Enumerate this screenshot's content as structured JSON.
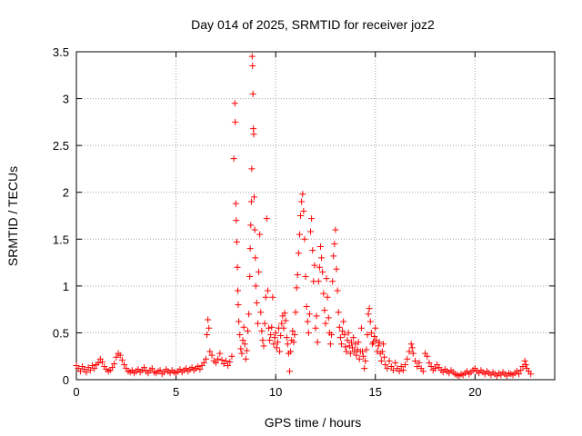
{
  "chart_data": {
    "type": "scatter",
    "title": "Day 014 of 2025, SRMTID for receiver joz2",
    "xlabel": "GPS time / hours",
    "ylabel": "SRMTID / TECUs",
    "xlim": [
      0,
      24
    ],
    "ylim": [
      0,
      3.5
    ],
    "x_ticks": [
      0,
      5,
      10,
      15,
      20
    ],
    "y_ticks": [
      0,
      0.5,
      1,
      1.5,
      2,
      2.5,
      3,
      3.5
    ],
    "x_tick_labels": [
      "0",
      "5",
      "10",
      "15",
      "20"
    ],
    "y_tick_labels": [
      "0",
      "0.5",
      "1",
      "1.5",
      "2",
      "2.5",
      "3",
      "3.5"
    ],
    "grid": true,
    "marker": "+",
    "marker_color": "#ff0000",
    "series": [
      {
        "name": "SRMTID",
        "points": [
          [
            0.0,
            0.15
          ],
          [
            0.1,
            0.12
          ],
          [
            0.2,
            0.09
          ],
          [
            0.3,
            0.14
          ],
          [
            0.4,
            0.11
          ],
          [
            0.5,
            0.08
          ],
          [
            0.6,
            0.13
          ],
          [
            0.7,
            0.1
          ],
          [
            0.8,
            0.15
          ],
          [
            0.9,
            0.12
          ],
          [
            1.0,
            0.16
          ],
          [
            1.1,
            0.18
          ],
          [
            1.2,
            0.22
          ],
          [
            1.3,
            0.19
          ],
          [
            1.4,
            0.14
          ],
          [
            1.5,
            0.11
          ],
          [
            1.6,
            0.09
          ],
          [
            1.7,
            0.1
          ],
          [
            1.8,
            0.13
          ],
          [
            1.9,
            0.17
          ],
          [
            2.0,
            0.24
          ],
          [
            2.1,
            0.28
          ],
          [
            2.2,
            0.26
          ],
          [
            2.3,
            0.21
          ],
          [
            2.4,
            0.16
          ],
          [
            2.5,
            0.12
          ],
          [
            2.6,
            0.09
          ],
          [
            2.7,
            0.08
          ],
          [
            2.8,
            0.1
          ],
          [
            2.9,
            0.07
          ],
          [
            3.0,
            0.09
          ],
          [
            3.1,
            0.11
          ],
          [
            3.2,
            0.08
          ],
          [
            3.3,
            0.1
          ],
          [
            3.4,
            0.13
          ],
          [
            3.5,
            0.09
          ],
          [
            3.6,
            0.07
          ],
          [
            3.7,
            0.1
          ],
          [
            3.8,
            0.12
          ],
          [
            3.9,
            0.08
          ],
          [
            4.0,
            0.07
          ],
          [
            4.1,
            0.09
          ],
          [
            4.2,
            0.1
          ],
          [
            4.3,
            0.06
          ],
          [
            4.4,
            0.08
          ],
          [
            4.5,
            0.11
          ],
          [
            4.6,
            0.09
          ],
          [
            4.7,
            0.07
          ],
          [
            4.8,
            0.1
          ],
          [
            4.9,
            0.08
          ],
          [
            5.0,
            0.07
          ],
          [
            5.1,
            0.09
          ],
          [
            5.2,
            0.11
          ],
          [
            5.3,
            0.08
          ],
          [
            5.4,
            0.1
          ],
          [
            5.5,
            0.12
          ],
          [
            5.6,
            0.09
          ],
          [
            5.7,
            0.11
          ],
          [
            5.8,
            0.13
          ],
          [
            5.9,
            0.1
          ],
          [
            6.0,
            0.12
          ],
          [
            6.1,
            0.14
          ],
          [
            6.2,
            0.11
          ],
          [
            6.3,
            0.15
          ],
          [
            6.4,
            0.18
          ],
          [
            6.5,
            0.22
          ],
          [
            6.55,
            0.48
          ],
          [
            6.6,
            0.64
          ],
          [
            6.65,
            0.55
          ],
          [
            6.7,
            0.3
          ],
          [
            6.8,
            0.26
          ],
          [
            6.9,
            0.2
          ],
          [
            7.0,
            0.18
          ],
          [
            7.1,
            0.22
          ],
          [
            7.2,
            0.28
          ],
          [
            7.3,
            0.21
          ],
          [
            7.4,
            0.17
          ],
          [
            7.5,
            0.2
          ],
          [
            7.6,
            0.15
          ],
          [
            7.7,
            0.19
          ],
          [
            7.8,
            0.25
          ],
          [
            7.9,
            2.36
          ],
          [
            7.95,
            2.95
          ],
          [
            7.97,
            2.75
          ],
          [
            8.0,
            1.88
          ],
          [
            8.02,
            1.7
          ],
          [
            8.05,
            1.47
          ],
          [
            8.08,
            1.2
          ],
          [
            8.1,
            0.95
          ],
          [
            8.12,
            0.8
          ],
          [
            8.15,
            0.62
          ],
          [
            8.2,
            0.48
          ],
          [
            8.25,
            0.33
          ],
          [
            8.3,
            0.28
          ],
          [
            8.35,
            0.42
          ],
          [
            8.4,
            0.56
          ],
          [
            8.45,
            0.38
          ],
          [
            8.5,
            0.22
          ],
          [
            8.55,
            0.31
          ],
          [
            8.6,
            0.52
          ],
          [
            8.65,
            0.7
          ],
          [
            8.7,
            1.1
          ],
          [
            8.72,
            1.4
          ],
          [
            8.75,
            1.65
          ],
          [
            8.78,
            1.9
          ],
          [
            8.8,
            2.25
          ],
          [
            8.82,
            3.45
          ],
          [
            8.84,
            3.35
          ],
          [
            8.86,
            3.05
          ],
          [
            8.88,
            2.68
          ],
          [
            8.9,
            2.62
          ],
          [
            8.92,
            1.95
          ],
          [
            8.95,
            1.6
          ],
          [
            8.98,
            1.3
          ],
          [
            9.0,
            1.0
          ],
          [
            9.05,
            0.82
          ],
          [
            9.1,
            0.6
          ],
          [
            9.15,
            1.15
          ],
          [
            9.2,
            1.55
          ],
          [
            9.25,
            0.72
          ],
          [
            9.3,
            0.52
          ],
          [
            9.35,
            0.42
          ],
          [
            9.4,
            0.36
          ],
          [
            9.45,
            0.6
          ],
          [
            9.5,
            0.88
          ],
          [
            9.55,
            1.72
          ],
          [
            9.6,
            0.95
          ],
          [
            9.65,
            0.55
          ],
          [
            9.7,
            0.42
          ],
          [
            9.75,
            0.48
          ],
          [
            9.8,
            0.56
          ],
          [
            9.85,
            0.88
          ],
          [
            9.9,
            0.38
          ],
          [
            9.95,
            0.45
          ],
          [
            10.0,
            0.5
          ],
          [
            10.05,
            0.34
          ],
          [
            10.1,
            0.4
          ],
          [
            10.15,
            0.55
          ],
          [
            10.2,
            0.3
          ],
          [
            10.25,
            0.47
          ],
          [
            10.3,
            0.6
          ],
          [
            10.35,
            0.68
          ],
          [
            10.4,
            0.55
          ],
          [
            10.45,
            0.71
          ],
          [
            10.5,
            0.63
          ],
          [
            10.55,
            0.45
          ],
          [
            10.6,
            0.38
          ],
          [
            10.65,
            0.28
          ],
          [
            10.7,
            0.09
          ],
          [
            10.75,
            0.3
          ],
          [
            10.8,
            0.42
          ],
          [
            10.85,
            0.52
          ],
          [
            10.9,
            0.4
          ],
          [
            10.95,
            0.48
          ],
          [
            11.0,
            0.72
          ],
          [
            11.05,
            0.98
          ],
          [
            11.1,
            1.12
          ],
          [
            11.15,
            1.35
          ],
          [
            11.2,
            1.55
          ],
          [
            11.25,
            1.75
          ],
          [
            11.3,
            1.9
          ],
          [
            11.35,
            1.98
          ],
          [
            11.4,
            1.8
          ],
          [
            11.45,
            1.5
          ],
          [
            11.5,
            1.1
          ],
          [
            11.55,
            0.78
          ],
          [
            11.6,
            0.62
          ],
          [
            11.65,
            0.5
          ],
          [
            11.7,
            0.7
          ],
          [
            11.75,
            1.58
          ],
          [
            11.8,
            1.72
          ],
          [
            11.85,
            1.38
          ],
          [
            11.9,
            1.05
          ],
          [
            11.95,
            1.22
          ],
          [
            12.0,
            0.55
          ],
          [
            12.05,
            0.68
          ],
          [
            12.1,
            0.4
          ],
          [
            12.15,
            1.05
          ],
          [
            12.2,
            1.2
          ],
          [
            12.25,
            1.42
          ],
          [
            12.3,
            1.3
          ],
          [
            12.35,
            1.15
          ],
          [
            12.4,
            0.92
          ],
          [
            12.45,
            0.74
          ],
          [
            12.5,
            0.6
          ],
          [
            12.55,
            1.08
          ],
          [
            12.6,
            0.88
          ],
          [
            12.65,
            0.66
          ],
          [
            12.7,
            0.5
          ],
          [
            12.75,
            0.38
          ],
          [
            12.8,
            0.48
          ],
          [
            12.85,
            1.05
          ],
          [
            12.9,
            1.32
          ],
          [
            12.95,
            1.45
          ],
          [
            13.0,
            1.6
          ],
          [
            13.05,
            1.18
          ],
          [
            13.1,
            0.95
          ],
          [
            13.15,
            0.72
          ],
          [
            13.2,
            0.56
          ],
          [
            13.25,
            0.45
          ],
          [
            13.3,
            0.38
          ],
          [
            13.35,
            0.52
          ],
          [
            13.4,
            0.62
          ],
          [
            13.45,
            0.48
          ],
          [
            13.5,
            0.35
          ],
          [
            13.55,
            0.3
          ],
          [
            13.6,
            0.42
          ],
          [
            13.65,
            0.5
          ],
          [
            13.7,
            0.36
          ],
          [
            13.75,
            0.28
          ],
          [
            13.8,
            0.4
          ],
          [
            13.85,
            0.34
          ],
          [
            13.9,
            0.45
          ],
          [
            13.95,
            0.3
          ],
          [
            14.0,
            0.38
          ],
          [
            14.05,
            0.26
          ],
          [
            14.1,
            0.32
          ],
          [
            14.15,
            0.4
          ],
          [
            14.2,
            0.22
          ],
          [
            14.25,
            0.3
          ],
          [
            14.3,
            0.55
          ],
          [
            14.35,
            0.3
          ],
          [
            14.4,
            0.25
          ],
          [
            14.45,
            0.12
          ],
          [
            14.5,
            0.2
          ],
          [
            14.55,
            0.32
          ],
          [
            14.6,
            0.48
          ],
          [
            14.65,
            0.7
          ],
          [
            14.7,
            0.76
          ],
          [
            14.75,
            0.62
          ],
          [
            14.8,
            0.5
          ],
          [
            14.85,
            0.38
          ],
          [
            14.9,
            0.4
          ],
          [
            14.95,
            0.46
          ],
          [
            15.0,
            0.55
          ],
          [
            15.05,
            0.42
          ],
          [
            15.1,
            0.3
          ],
          [
            15.15,
            0.36
          ],
          [
            15.2,
            0.4
          ],
          [
            15.25,
            0.28
          ],
          [
            15.3,
            0.2
          ],
          [
            15.35,
            0.3
          ],
          [
            15.4,
            0.38
          ],
          [
            15.45,
            0.24
          ],
          [
            15.5,
            0.16
          ],
          [
            15.6,
            0.12
          ],
          [
            15.7,
            0.2
          ],
          [
            15.8,
            0.14
          ],
          [
            15.9,
            0.1
          ],
          [
            16.0,
            0.18
          ],
          [
            16.1,
            0.12
          ],
          [
            16.2,
            0.09
          ],
          [
            16.3,
            0.14
          ],
          [
            16.4,
            0.1
          ],
          [
            16.5,
            0.16
          ],
          [
            16.6,
            0.22
          ],
          [
            16.7,
            0.3
          ],
          [
            16.8,
            0.38
          ],
          [
            16.85,
            0.34
          ],
          [
            16.9,
            0.28
          ],
          [
            17.0,
            0.2
          ],
          [
            17.1,
            0.14
          ],
          [
            17.2,
            0.18
          ],
          [
            17.3,
            0.12
          ],
          [
            17.4,
            0.09
          ],
          [
            17.5,
            0.28
          ],
          [
            17.6,
            0.25
          ],
          [
            17.7,
            0.18
          ],
          [
            17.8,
            0.14
          ],
          [
            17.9,
            0.1
          ],
          [
            18.0,
            0.12
          ],
          [
            18.1,
            0.16
          ],
          [
            18.2,
            0.13
          ],
          [
            18.3,
            0.1
          ],
          [
            18.4,
            0.08
          ],
          [
            18.5,
            0.11
          ],
          [
            18.6,
            0.09
          ],
          [
            18.7,
            0.07
          ],
          [
            18.8,
            0.1
          ],
          [
            18.9,
            0.08
          ],
          [
            19.0,
            0.06
          ],
          [
            19.1,
            0.05
          ],
          [
            19.2,
            0.04
          ],
          [
            19.3,
            0.06
          ],
          [
            19.4,
            0.05
          ],
          [
            19.5,
            0.07
          ],
          [
            19.6,
            0.09
          ],
          [
            19.7,
            0.06
          ],
          [
            19.8,
            0.08
          ],
          [
            19.9,
            0.1
          ],
          [
            20.0,
            0.12
          ],
          [
            20.1,
            0.09
          ],
          [
            20.2,
            0.07
          ],
          [
            20.3,
            0.1
          ],
          [
            20.4,
            0.08
          ],
          [
            20.5,
            0.06
          ],
          [
            20.6,
            0.09
          ],
          [
            20.7,
            0.07
          ],
          [
            20.8,
            0.05
          ],
          [
            20.9,
            0.08
          ],
          [
            21.0,
            0.06
          ],
          [
            21.1,
            0.04
          ],
          [
            21.2,
            0.07
          ],
          [
            21.3,
            0.05
          ],
          [
            21.4,
            0.08
          ],
          [
            21.5,
            0.06
          ],
          [
            21.6,
            0.04
          ],
          [
            21.7,
            0.07
          ],
          [
            21.8,
            0.06
          ],
          [
            21.9,
            0.05
          ],
          [
            22.0,
            0.07
          ],
          [
            22.1,
            0.09
          ],
          [
            22.2,
            0.06
          ],
          [
            22.3,
            0.1
          ],
          [
            22.4,
            0.14
          ],
          [
            22.5,
            0.2
          ],
          [
            22.55,
            0.16
          ],
          [
            22.6,
            0.12
          ],
          [
            22.7,
            0.09
          ],
          [
            22.8,
            0.06
          ]
        ]
      }
    ]
  }
}
